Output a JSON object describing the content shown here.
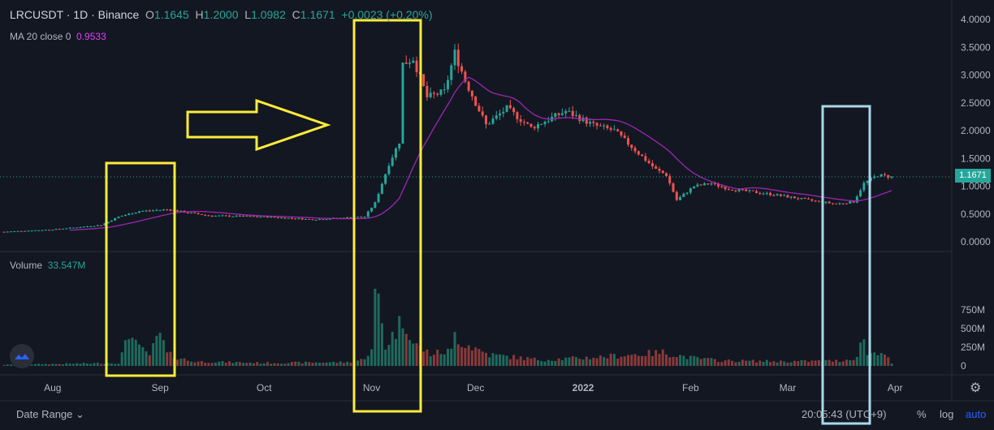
{
  "legend": {
    "symbol": "LRCUSDT · 1D · Binance",
    "o_label": "O",
    "o": "1.1645",
    "h_label": "H",
    "h": "1.2000",
    "l_label": "L",
    "l": "1.0982",
    "c_label": "C",
    "c": "1.1671",
    "change": "+0.0023 (+0.20%)"
  },
  "ma_legend": {
    "label": "MA 20 close 0",
    "value": "0.9533"
  },
  "volume_legend": {
    "label": "Volume",
    "value": "33.547M"
  },
  "last_price_tag": "1.1671",
  "bottom": {
    "date_range": "Date Range",
    "time": "20:05:43 (UTC+9)",
    "percent": "%",
    "log": "log",
    "auto": "auto"
  },
  "colors": {
    "up": "#26a69a",
    "down": "#ef5350",
    "ma": "#9c27b0",
    "highlight_yellow": "#ffeb3b",
    "highlight_blue": "#a8d8ea",
    "background": "#131722"
  },
  "icons": {
    "logo": "tradingview-logo-icon",
    "settings": "gear-icon",
    "date_chevron": "chevron-down-icon"
  },
  "chart_data": {
    "type": "candlestick",
    "price_axis_ticks": [
      "4.0000",
      "3.5000",
      "3.0000",
      "2.5000",
      "2.0000",
      "1.5000",
      "1.0000",
      "0.5000",
      "0.0000"
    ],
    "price_tick_values": [
      4.0,
      3.5,
      3.0,
      2.5,
      2.0,
      1.5,
      1.0,
      0.5,
      0.0
    ],
    "volume_axis_ticks": [
      "750M",
      "500M",
      "250M",
      "0"
    ],
    "volume_tick_values": [
      750,
      500,
      250,
      0
    ],
    "time_axis_labels": [
      "Aug",
      "Sep",
      "Oct",
      "Nov",
      "Dec",
      "2022",
      "Feb",
      "Mar",
      "Apr"
    ],
    "date_start": "2021-07-18",
    "date_end": "2022-03-31",
    "month_starts": [
      "2021-08-01",
      "2021-09-01",
      "2021-10-01",
      "2021-11-01",
      "2021-12-01",
      "2022-01-01",
      "2022-02-01",
      "2022-03-01",
      "2022-04-01"
    ],
    "price_anchors": [
      [
        "2021-07-18",
        0.18
      ],
      [
        "2021-08-01",
        0.22
      ],
      [
        "2021-08-15",
        0.3
      ],
      [
        "2021-08-20",
        0.45
      ],
      [
        "2021-08-26",
        0.55
      ],
      [
        "2021-09-03",
        0.58
      ],
      [
        "2021-09-15",
        0.47
      ],
      [
        "2021-10-01",
        0.45
      ],
      [
        "2021-10-15",
        0.4
      ],
      [
        "2021-10-30",
        0.45
      ],
      [
        "2021-11-02",
        0.7
      ],
      [
        "2021-11-06",
        1.4
      ],
      [
        "2021-11-09",
        1.8
      ],
      [
        "2021-11-10",
        3.2
      ],
      [
        "2021-11-13",
        3.3
      ],
      [
        "2021-11-17",
        2.6
      ],
      [
        "2021-11-22",
        2.7
      ],
      [
        "2021-11-25",
        3.4
      ],
      [
        "2021-11-28",
        2.9
      ],
      [
        "2021-12-04",
        2.1
      ],
      [
        "2021-12-10",
        2.4
      ],
      [
        "2021-12-17",
        2.05
      ],
      [
        "2021-12-27",
        2.35
      ],
      [
        "2022-01-04",
        2.1
      ],
      [
        "2022-01-10",
        2.0
      ],
      [
        "2022-01-22",
        1.3
      ],
      [
        "2022-01-25",
        1.2
      ],
      [
        "2022-01-28",
        0.75
      ],
      [
        "2022-02-02",
        1.0
      ],
      [
        "2022-02-07",
        1.05
      ],
      [
        "2022-02-12",
        0.95
      ],
      [
        "2022-02-25",
        0.85
      ],
      [
        "2022-03-07",
        0.75
      ],
      [
        "2022-03-15",
        0.68
      ],
      [
        "2022-03-20",
        0.72
      ],
      [
        "2022-03-23",
        1.05
      ],
      [
        "2022-03-27",
        1.2
      ],
      [
        "2022-03-31",
        1.167
      ]
    ],
    "volume_anchors": [
      [
        "2021-07-18",
        15
      ],
      [
        "2021-08-20",
        40
      ],
      [
        "2021-08-24",
        510
      ],
      [
        "2021-08-25",
        330
      ],
      [
        "2021-08-26",
        230
      ],
      [
        "2021-08-29",
        150
      ],
      [
        "2021-09-01",
        430
      ],
      [
        "2021-09-03",
        160
      ],
      [
        "2021-09-10",
        60
      ],
      [
        "2021-10-01",
        40
      ],
      [
        "2021-10-25",
        50
      ],
      [
        "2021-10-29",
        80
      ],
      [
        "2021-11-01",
        200
      ],
      [
        "2021-11-02",
        880
      ],
      [
        "2021-11-03",
        920
      ],
      [
        "2021-11-05",
        260
      ],
      [
        "2021-11-10",
        620
      ],
      [
        "2021-11-11",
        600
      ],
      [
        "2021-11-13",
        300
      ],
      [
        "2021-11-18",
        160
      ],
      [
        "2021-11-24",
        200
      ],
      [
        "2021-11-25",
        430
      ],
      [
        "2021-11-27",
        320
      ],
      [
        "2021-12-05",
        150
      ],
      [
        "2021-12-20",
        80
      ],
      [
        "2022-01-06",
        120
      ],
      [
        "2022-01-24",
        180
      ],
      [
        "2022-02-01",
        110
      ],
      [
        "2022-02-10",
        70
      ],
      [
        "2022-03-01",
        60
      ],
      [
        "2022-03-17",
        70
      ],
      [
        "2022-03-21",
        120
      ],
      [
        "2022-03-23",
        420
      ],
      [
        "2022-03-24",
        150
      ],
      [
        "2022-03-28",
        210
      ],
      [
        "2022-03-31",
        34
      ]
    ],
    "last_price": 1.1671,
    "ma_period": 20,
    "annotations": [
      "highlight-box",
      "right-arrow",
      "highlight-box",
      "highlight-box"
    ]
  }
}
